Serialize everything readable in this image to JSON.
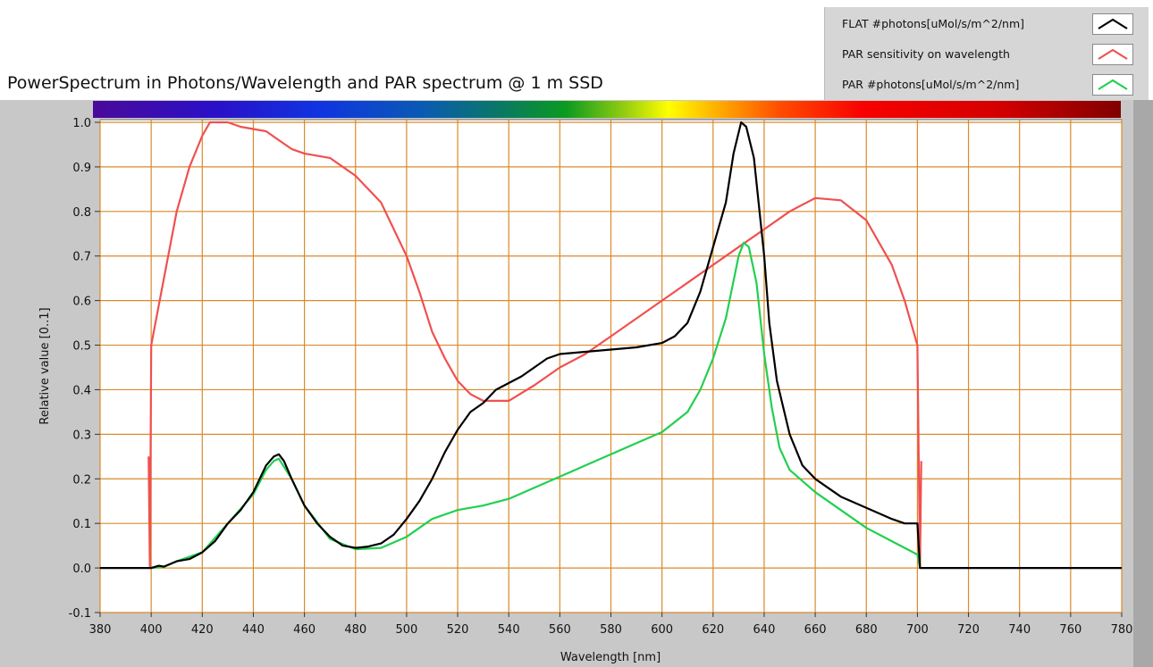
{
  "chart_data": {
    "type": "line",
    "title": "PowerSpectrum in Photons/Wavelength and PAR spectrum @ 1 m SSD",
    "xlabel": "Wavelength [nm]",
    "ylabel": "Relative value [0..1]",
    "xlim": [
      380,
      780
    ],
    "ylim": [
      -0.1,
      1.0
    ],
    "xticks": [
      380,
      400,
      420,
      440,
      460,
      480,
      500,
      520,
      540,
      560,
      580,
      600,
      620,
      640,
      660,
      680,
      700,
      720,
      740,
      760,
      780
    ],
    "yticks": [
      -0.1,
      0.0,
      0.1,
      0.2,
      0.3,
      0.4,
      0.5,
      0.6,
      0.7,
      0.8,
      0.9,
      1.0
    ],
    "ytick_labels": [
      "-0.1",
      "0.0",
      "0.1",
      "0.2",
      "0.3",
      "0.4",
      "0.5",
      "0.6",
      "0.7",
      "0.8",
      "0.9",
      "1.0"
    ],
    "grid": true,
    "grid_color": "#d98a2b",
    "legend_position": "top-right",
    "spectrum_bar": true,
    "series": [
      {
        "name": "FLAT #photons[uMol/s/m^2/nm]",
        "color": "#000000",
        "points": [
          [
            380,
            0
          ],
          [
            399,
            0
          ],
          [
            400,
            0
          ],
          [
            403,
            0.005
          ],
          [
            405,
            0.003
          ],
          [
            410,
            0.015
          ],
          [
            415,
            0.02
          ],
          [
            420,
            0.035
          ],
          [
            425,
            0.06
          ],
          [
            430,
            0.1
          ],
          [
            435,
            0.13
          ],
          [
            440,
            0.17
          ],
          [
            445,
            0.23
          ],
          [
            448,
            0.25
          ],
          [
            450,
            0.255
          ],
          [
            452,
            0.24
          ],
          [
            455,
            0.2
          ],
          [
            460,
            0.14
          ],
          [
            465,
            0.1
          ],
          [
            470,
            0.07
          ],
          [
            475,
            0.05
          ],
          [
            480,
            0.045
          ],
          [
            485,
            0.048
          ],
          [
            490,
            0.055
          ],
          [
            495,
            0.075
          ],
          [
            500,
            0.11
          ],
          [
            505,
            0.15
          ],
          [
            510,
            0.2
          ],
          [
            515,
            0.26
          ],
          [
            520,
            0.31
          ],
          [
            525,
            0.35
          ],
          [
            530,
            0.37
          ],
          [
            535,
            0.4
          ],
          [
            540,
            0.415
          ],
          [
            545,
            0.43
          ],
          [
            550,
            0.45
          ],
          [
            555,
            0.47
          ],
          [
            560,
            0.48
          ],
          [
            570,
            0.485
          ],
          [
            580,
            0.49
          ],
          [
            590,
            0.495
          ],
          [
            600,
            0.505
          ],
          [
            605,
            0.52
          ],
          [
            610,
            0.55
          ],
          [
            615,
            0.62
          ],
          [
            620,
            0.72
          ],
          [
            625,
            0.82
          ],
          [
            628,
            0.93
          ],
          [
            631,
            1.0
          ],
          [
            633,
            0.99
          ],
          [
            636,
            0.92
          ],
          [
            640,
            0.7
          ],
          [
            642,
            0.55
          ],
          [
            645,
            0.42
          ],
          [
            650,
            0.3
          ],
          [
            655,
            0.23
          ],
          [
            660,
            0.2
          ],
          [
            665,
            0.18
          ],
          [
            670,
            0.16
          ],
          [
            680,
            0.135
          ],
          [
            690,
            0.11
          ],
          [
            695,
            0.1
          ],
          [
            700,
            0.1
          ],
          [
            701,
            0.0
          ],
          [
            780,
            0.0
          ]
        ]
      },
      {
        "name": "PAR sensitivity on wavelength",
        "color": "#f05050",
        "points": [
          [
            399,
            0.25
          ],
          [
            399.5,
            0
          ],
          [
            400,
            0.5
          ],
          [
            405,
            0.65
          ],
          [
            410,
            0.8
          ],
          [
            415,
            0.9
          ],
          [
            420,
            0.97
          ],
          [
            423,
            1.0
          ],
          [
            430,
            1.0
          ],
          [
            435,
            0.99
          ],
          [
            445,
            0.98
          ],
          [
            450,
            0.96
          ],
          [
            455,
            0.94
          ],
          [
            460,
            0.93
          ],
          [
            470,
            0.92
          ],
          [
            480,
            0.88
          ],
          [
            490,
            0.82
          ],
          [
            500,
            0.7
          ],
          [
            505,
            0.62
          ],
          [
            510,
            0.53
          ],
          [
            515,
            0.47
          ],
          [
            520,
            0.42
          ],
          [
            525,
            0.39
          ],
          [
            530,
            0.375
          ],
          [
            540,
            0.375
          ],
          [
            550,
            0.41
          ],
          [
            560,
            0.45
          ],
          [
            570,
            0.48
          ],
          [
            580,
            0.52
          ],
          [
            590,
            0.56
          ],
          [
            600,
            0.6
          ],
          [
            610,
            0.64
          ],
          [
            620,
            0.68
          ],
          [
            630,
            0.72
          ],
          [
            640,
            0.76
          ],
          [
            650,
            0.8
          ],
          [
            660,
            0.83
          ],
          [
            670,
            0.825
          ],
          [
            680,
            0.78
          ],
          [
            690,
            0.68
          ],
          [
            695,
            0.6
          ],
          [
            700,
            0.5
          ],
          [
            701,
            0
          ],
          [
            701.5,
            0.24
          ]
        ]
      },
      {
        "name": "PAR #photons[uMol/s/m^2/nm]",
        "color": "#20d050",
        "points": [
          [
            400,
            0
          ],
          [
            405,
            0.003
          ],
          [
            410,
            0.015
          ],
          [
            420,
            0.035
          ],
          [
            430,
            0.1
          ],
          [
            440,
            0.165
          ],
          [
            445,
            0.22
          ],
          [
            448,
            0.24
          ],
          [
            450,
            0.245
          ],
          [
            455,
            0.2
          ],
          [
            460,
            0.14
          ],
          [
            470,
            0.065
          ],
          [
            480,
            0.042
          ],
          [
            490,
            0.045
          ],
          [
            500,
            0.07
          ],
          [
            510,
            0.11
          ],
          [
            520,
            0.13
          ],
          [
            530,
            0.14
          ],
          [
            540,
            0.155
          ],
          [
            550,
            0.18
          ],
          [
            560,
            0.205
          ],
          [
            570,
            0.23
          ],
          [
            580,
            0.255
          ],
          [
            590,
            0.28
          ],
          [
            600,
            0.305
          ],
          [
            610,
            0.35
          ],
          [
            615,
            0.4
          ],
          [
            620,
            0.47
          ],
          [
            625,
            0.56
          ],
          [
            630,
            0.7
          ],
          [
            632,
            0.73
          ],
          [
            634,
            0.72
          ],
          [
            637,
            0.64
          ],
          [
            640,
            0.48
          ],
          [
            643,
            0.36
          ],
          [
            646,
            0.27
          ],
          [
            650,
            0.22
          ],
          [
            660,
            0.17
          ],
          [
            670,
            0.13
          ],
          [
            680,
            0.09
          ],
          [
            690,
            0.06
          ],
          [
            695,
            0.045
          ],
          [
            700,
            0.03
          ],
          [
            701,
            0
          ]
        ]
      }
    ]
  }
}
